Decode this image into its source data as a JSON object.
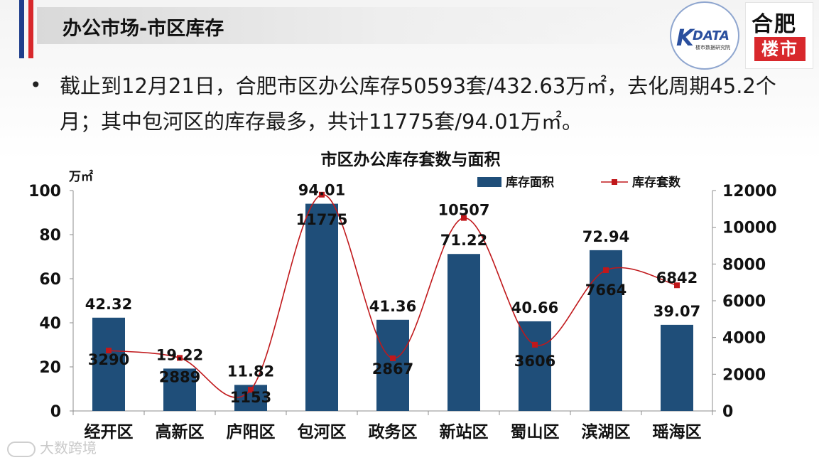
{
  "header": {
    "title": "办公市场-市区库存"
  },
  "logos": {
    "kdata": {
      "letter": "K",
      "word": "DATA",
      "sub": "楼市数据研究院"
    },
    "hefei": {
      "top": "合肥",
      "bottom": "楼市"
    }
  },
  "summary": {
    "bullet": "•",
    "text": "截止到12月21日，合肥市区办公库存50593套/432.63万㎡，去化周期45.2个月；其中包河区的库存最多，共计11775套/94.01万㎡。"
  },
  "watermark": {
    "text": "大数跨境"
  },
  "colors": {
    "bar": "#1f4e79",
    "line": "#c0181b",
    "axis": "#8c8c8c"
  },
  "chart_data": {
    "type": "bar",
    "title": "市区办公库存套数与面积",
    "y_unit": "万㎡",
    "categories": [
      "经开区",
      "高新区",
      "庐阳区",
      "包河区",
      "政务区",
      "新站区",
      "蜀山区",
      "滨湖区",
      "瑶海区"
    ],
    "series": [
      {
        "name": "库存面积",
        "type": "bar",
        "axis": "left",
        "values": [
          42.32,
          19.22,
          11.82,
          94.01,
          41.36,
          71.22,
          40.66,
          72.94,
          39.07
        ]
      },
      {
        "name": "库存套数",
        "type": "line",
        "axis": "right",
        "values": [
          3290,
          2889,
          1153,
          11775,
          2867,
          10507,
          3606,
          7664,
          6842
        ]
      }
    ],
    "ylim_left": [
      0,
      100
    ],
    "ylim_right": [
      0,
      12000
    ],
    "yticks_left": [
      "0",
      "20",
      "40",
      "60",
      "80",
      "100"
    ],
    "yticks_right": [
      "0",
      "2000",
      "4000",
      "6000",
      "8000",
      "10000",
      "12000"
    ],
    "grid": false,
    "legend": "top"
  }
}
